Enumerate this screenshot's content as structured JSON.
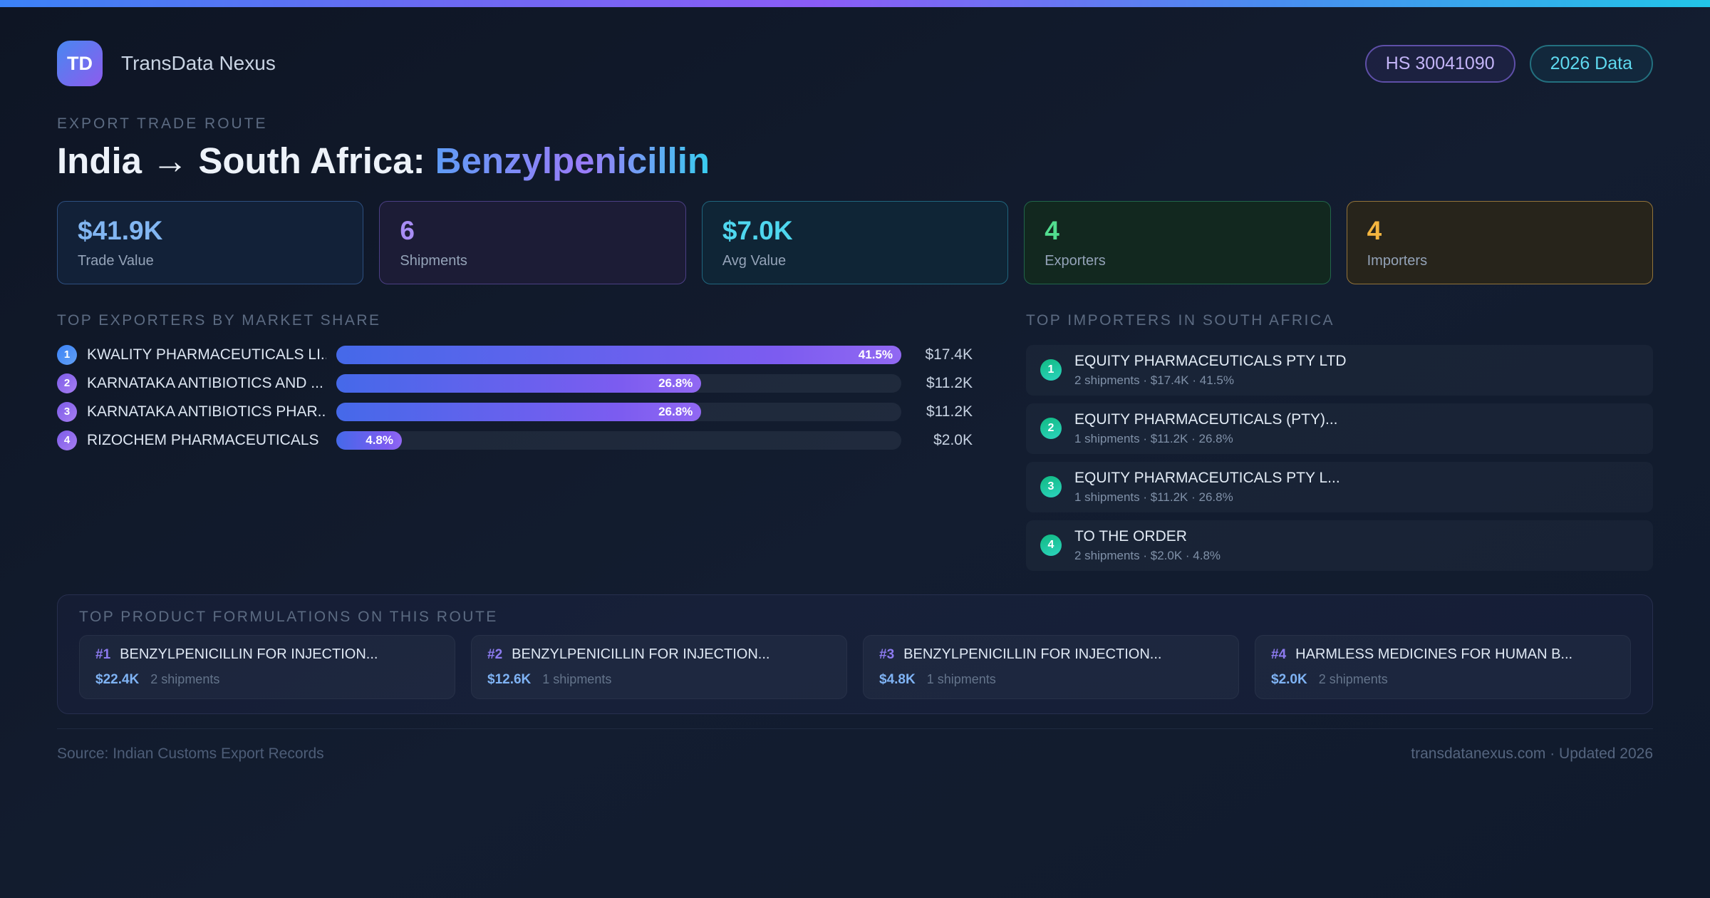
{
  "brand": {
    "logo_text": "TD",
    "name": "TransData Nexus"
  },
  "badges": {
    "hs_code": "HS 30041090",
    "year": "2026 Data"
  },
  "hero": {
    "eyebrow": "EXPORT TRADE ROUTE",
    "route": "India → South Africa:",
    "product": "Benzylpenicillin"
  },
  "stats": [
    {
      "value": "$41.9K",
      "label": "Trade Value",
      "accent": "#82b6f2",
      "bg": "#122138",
      "border": "#2d4f80"
    },
    {
      "value": "6",
      "label": "Shipments",
      "accent": "#a88df5",
      "bg": "#1c1c36",
      "border": "#4b3f84"
    },
    {
      "value": "$7.0K",
      "label": "Avg Value",
      "accent": "#4fd7ef",
      "bg": "#0f2536",
      "border": "#20667e"
    },
    {
      "value": "4",
      "label": "Exporters",
      "accent": "#52dd8f",
      "bg": "#12281f",
      "border": "#21664a"
    },
    {
      "value": "4",
      "label": "Importers",
      "accent": "#f4b53f",
      "bg": "#27241b",
      "border": "#93743a"
    }
  ],
  "exporters": {
    "title": "TOP EXPORTERS BY MARKET SHARE",
    "rows": [
      {
        "rank": "1",
        "name": "KWALITY PHARMACEUTICALS LI...",
        "share": "41.5%",
        "bar_width": "100%",
        "value": "$17.4K"
      },
      {
        "rank": "2",
        "name": "KARNATAKA ANTIBIOTICS AND ...",
        "share": "26.8%",
        "bar_width": "64.6%",
        "value": "$11.2K"
      },
      {
        "rank": "3",
        "name": "KARNATAKA ANTIBIOTICS PHAR...",
        "share": "26.8%",
        "bar_width": "64.6%",
        "value": "$11.2K"
      },
      {
        "rank": "4",
        "name": "RIZOCHEM PHARMACEUTICALS",
        "share": "4.8%",
        "bar_width": "11.6%",
        "value": "$2.0K"
      }
    ]
  },
  "importers": {
    "title": "TOP IMPORTERS IN SOUTH AFRICA",
    "rows": [
      {
        "rank": "1",
        "name": "EQUITY PHARMACEUTICALS PTY LTD",
        "meta": "2 shipments · $17.4K · 41.5%"
      },
      {
        "rank": "2",
        "name": "EQUITY PHARMACEUTICALS (PTY)...",
        "meta": "1 shipments · $11.2K · 26.8%"
      },
      {
        "rank": "3",
        "name": "EQUITY PHARMACEUTICALS PTY L...",
        "meta": "1 shipments · $11.2K · 26.8%"
      },
      {
        "rank": "4",
        "name": "TO THE ORDER",
        "meta": "2 shipments · $2.0K · 4.8%"
      }
    ]
  },
  "formulations": {
    "title": "TOP PRODUCT FORMULATIONS ON THIS ROUTE",
    "cards": [
      {
        "rank": "#1",
        "name": "BENZYLPENICILLIN FOR INJECTION...",
        "value": "$22.4K",
        "shipments": "2 shipments"
      },
      {
        "rank": "#2",
        "name": "BENZYLPENICILLIN FOR INJECTION...",
        "value": "$12.6K",
        "shipments": "1 shipments"
      },
      {
        "rank": "#3",
        "name": "BENZYLPENICILLIN FOR INJECTION...",
        "value": "$4.8K",
        "shipments": "1 shipments"
      },
      {
        "rank": "#4",
        "name": "HARMLESS MEDICINES FOR HUMAN B...",
        "value": "$2.0K",
        "shipments": "2 shipments"
      }
    ]
  },
  "footer": {
    "source": "Source: Indian Customs Export Records",
    "site": "transdatanexus.com · Updated 2026"
  }
}
